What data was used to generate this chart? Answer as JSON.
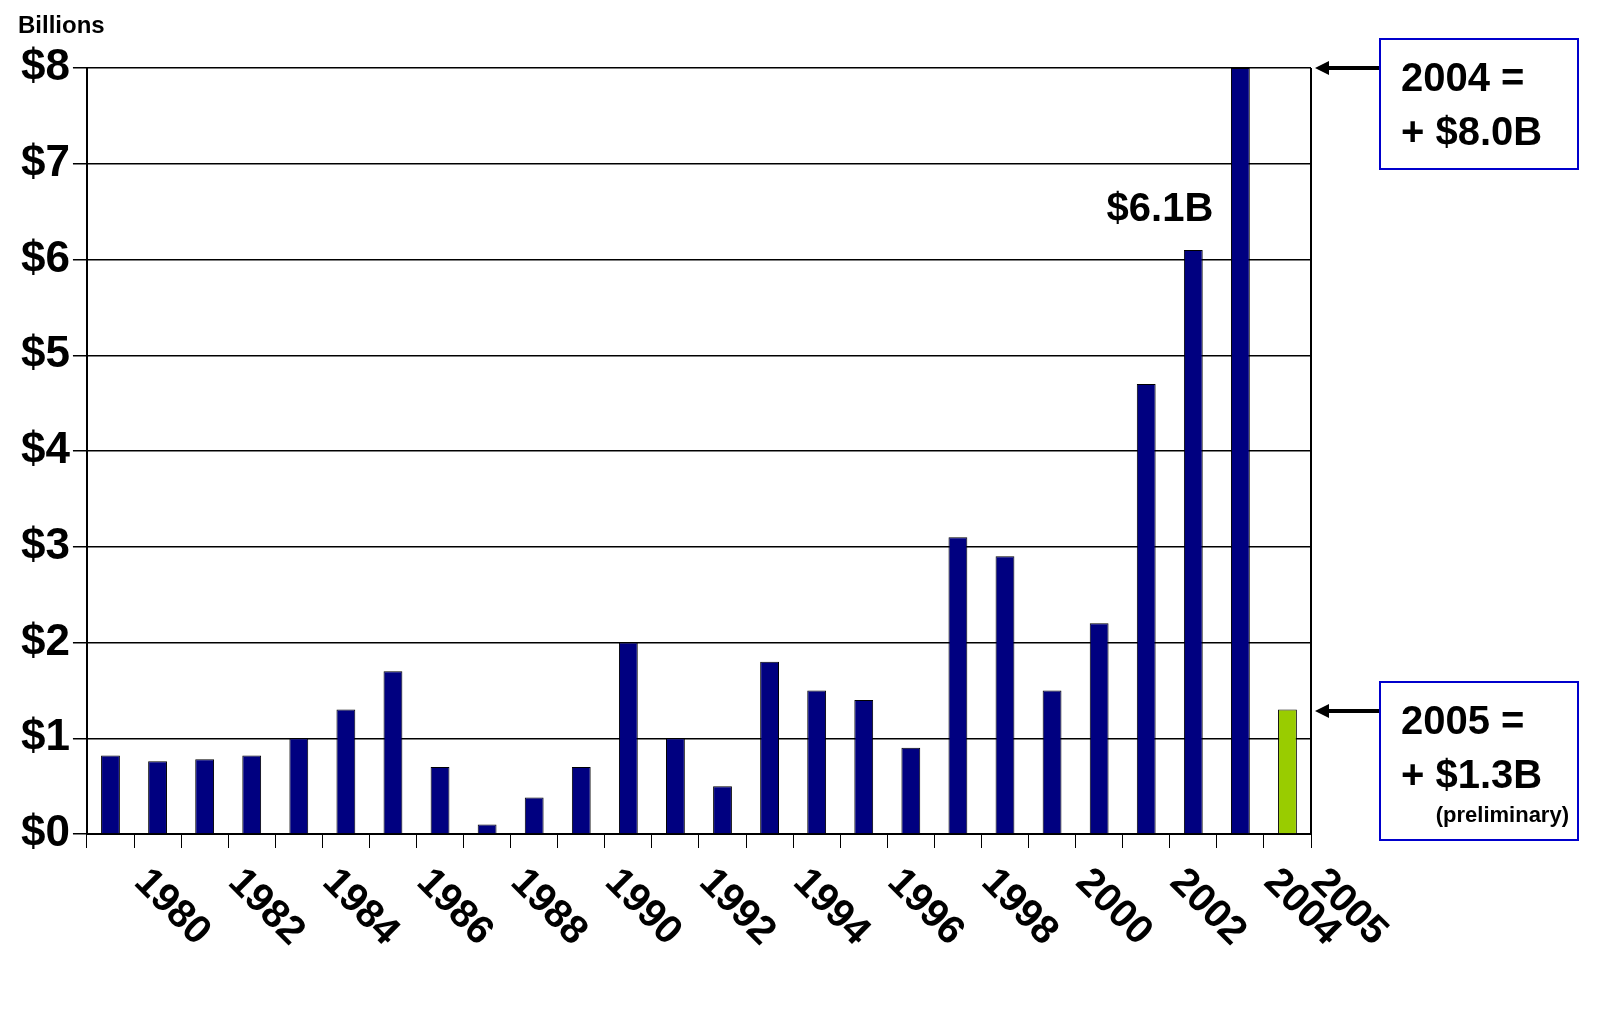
{
  "chart_data": {
    "type": "bar",
    "ylabel": "Billions",
    "categories": [
      "1980",
      null,
      "1982",
      null,
      "1984",
      null,
      "1986",
      null,
      "1988",
      null,
      "1990",
      null,
      "1992",
      null,
      "1994",
      null,
      "1996",
      null,
      "1998",
      null,
      "2000",
      null,
      "2002",
      null,
      "2004",
      "2005"
    ],
    "values": [
      0.82,
      0.76,
      0.78,
      0.82,
      1.0,
      1.3,
      1.7,
      0.7,
      0.1,
      0.38,
      0.7,
      2.0,
      1.0,
      0.5,
      1.8,
      1.5,
      1.4,
      0.9,
      3.1,
      2.9,
      1.5,
      2.2,
      4.7,
      6.1,
      8.0,
      1.3
    ],
    "colors": [
      "#000080",
      "#000080",
      "#000080",
      "#000080",
      "#000080",
      "#000080",
      "#000080",
      "#000080",
      "#000080",
      "#000080",
      "#000080",
      "#000080",
      "#000080",
      "#000080",
      "#000080",
      "#000080",
      "#000080",
      "#000080",
      "#000080",
      "#000080",
      "#000080",
      "#000080",
      "#000080",
      "#000080",
      "#000080",
      "#99cc00"
    ],
    "value_labels": [
      null,
      null,
      null,
      null,
      null,
      null,
      null,
      null,
      null,
      null,
      null,
      null,
      null,
      null,
      null,
      null,
      null,
      null,
      null,
      null,
      null,
      null,
      null,
      "$6.1B",
      null,
      null
    ],
    "ylim": [
      0,
      8
    ],
    "yticks": [
      {
        "value": 0,
        "label": "$0"
      },
      {
        "value": 1,
        "label": "$1"
      },
      {
        "value": 2,
        "label": "$2"
      },
      {
        "value": 3,
        "label": "$3"
      },
      {
        "value": 4,
        "label": "$4"
      },
      {
        "value": 5,
        "label": "$5"
      },
      {
        "value": 6,
        "label": "$6"
      },
      {
        "value": 7,
        "label": "$7"
      },
      {
        "value": 8,
        "label": "$8"
      }
    ],
    "grid": "y",
    "legend": false,
    "annotations": [
      "2004 =\n+ $8.0B",
      "2005 =\n+ $1.3B\n(preliminary)"
    ]
  }
}
